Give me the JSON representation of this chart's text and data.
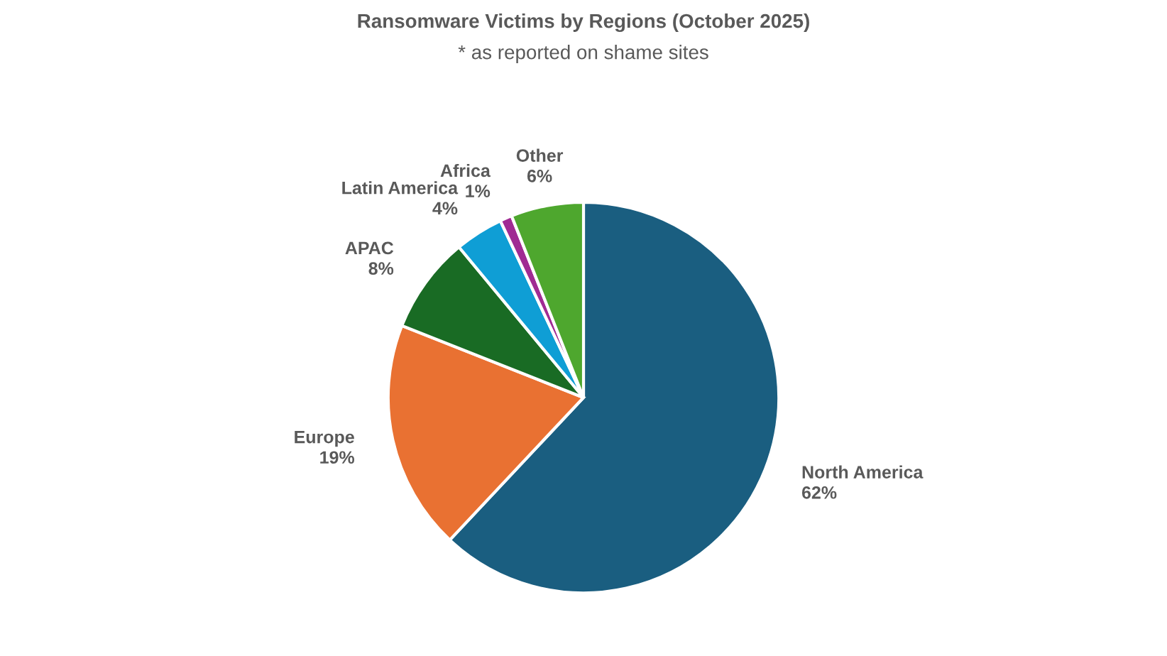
{
  "chart_data": {
    "type": "pie",
    "title": "Ransomware Victims by Regions (October 2025)",
    "subtitle": "* as reported on shame sites",
    "categories": [
      "North America",
      "Europe",
      "APAC",
      "Latin America",
      "Africa",
      "Other"
    ],
    "values": [
      62,
      19,
      8,
      4,
      1,
      6
    ],
    "value_labels": [
      "62%",
      "19%",
      "8%",
      "4%",
      "1%",
      "6%"
    ],
    "colors": [
      "#1a5e80",
      "#e97132",
      "#196b24",
      "#0f9ed5",
      "#a02b93",
      "#4ea72e"
    ],
    "legend": false
  }
}
